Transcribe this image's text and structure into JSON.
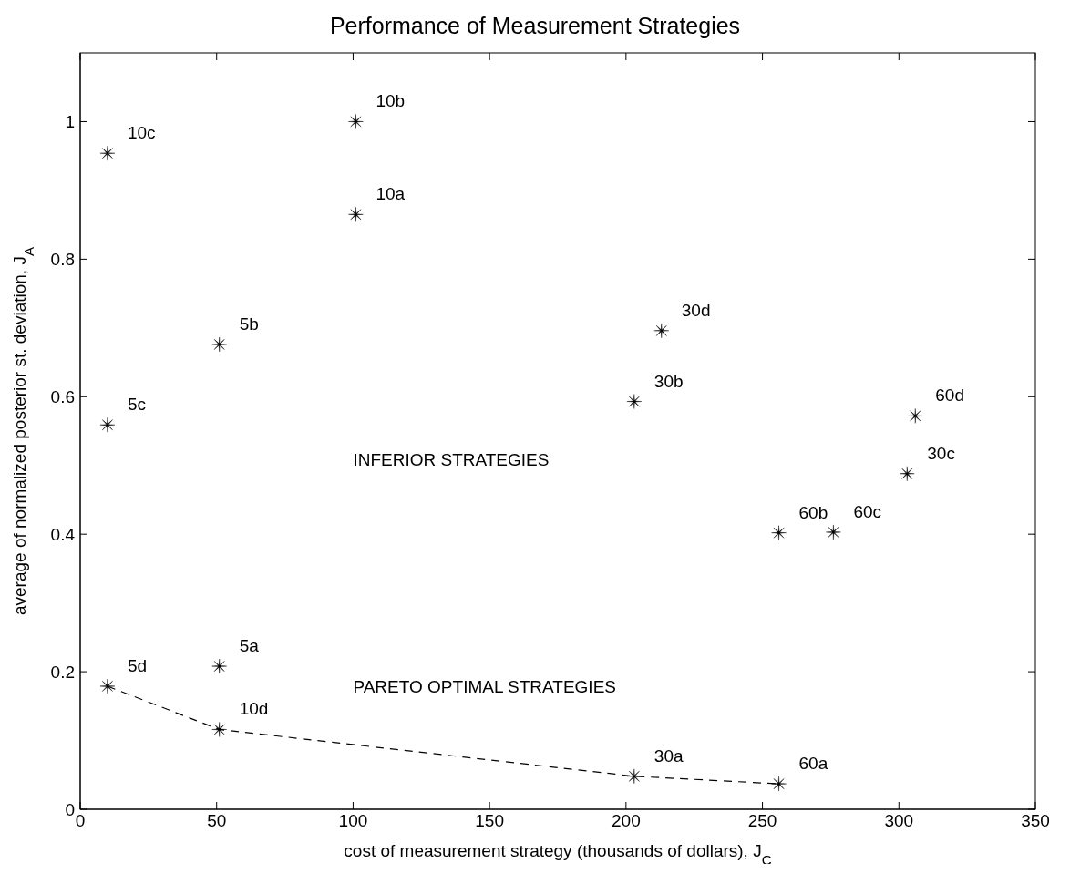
{
  "chart_data": {
    "type": "scatter",
    "title": "Performance of Measurement Strategies",
    "xlabel": "cost of measurement strategy (thousands of dollars), J$_{C}$",
    "ylabel": "average of normalized posterior st. deviation, J$_{A}$",
    "xlim": [
      0,
      350
    ],
    "xticks": [
      0,
      50,
      100,
      150,
      200,
      250,
      300,
      350
    ],
    "ylim": [
      0,
      1.1
    ],
    "yticks": [
      0,
      0.2,
      0.4,
      0.6,
      0.8,
      1
    ],
    "grid": false,
    "legend": false,
    "series": [
      {
        "color": "#000000",
        "marker": "star",
        "x": [
          10,
          101,
          101,
          51,
          10,
          213,
          203,
          306,
          303,
          256,
          276,
          51,
          10,
          51,
          203,
          256
        ],
        "values": [
          0.954,
          1.0,
          0.865,
          0.676,
          0.559,
          0.696,
          0.593,
          0.572,
          0.488,
          0.402,
          0.403,
          0.208,
          0.179,
          0.116,
          0.048,
          0.037
        ]
      },
      {
        "type": "line",
        "color": "#000000",
        "line_style": "dashed",
        "x": [
          10,
          51,
          203,
          256
        ],
        "values": [
          0.179,
          0.116,
          0.048,
          0.037
        ]
      }
    ],
    "annotations": [
      {
        "text": "10c",
        "x": 10,
        "y": 0.954
      },
      {
        "text": "10b",
        "x": 101,
        "y": 1.0
      },
      {
        "text": "10a",
        "x": 101,
        "y": 0.865
      },
      {
        "text": "5b",
        "x": 51,
        "y": 0.676
      },
      {
        "text": "5c",
        "x": 10,
        "y": 0.559
      },
      {
        "text": "30d",
        "x": 213,
        "y": 0.696
      },
      {
        "text": "30b",
        "x": 203,
        "y": 0.593
      },
      {
        "text": "60d",
        "x": 306,
        "y": 0.572
      },
      {
        "text": "30c",
        "x": 303,
        "y": 0.488
      },
      {
        "text": "60b",
        "x": 256,
        "y": 0.402
      },
      {
        "text": "60c",
        "x": 276,
        "y": 0.403
      },
      {
        "text": "5a",
        "x": 51,
        "y": 0.208
      },
      {
        "text": "5d",
        "x": 10,
        "y": 0.179
      },
      {
        "text": "10d",
        "x": 51,
        "y": 0.116
      },
      {
        "text": "30a",
        "x": 203,
        "y": 0.048
      },
      {
        "text": "60a",
        "x": 256,
        "y": 0.037
      },
      "INFERIOR STRATEGIES",
      "PARETO OPTIMAL STRATEGIES"
    ]
  }
}
